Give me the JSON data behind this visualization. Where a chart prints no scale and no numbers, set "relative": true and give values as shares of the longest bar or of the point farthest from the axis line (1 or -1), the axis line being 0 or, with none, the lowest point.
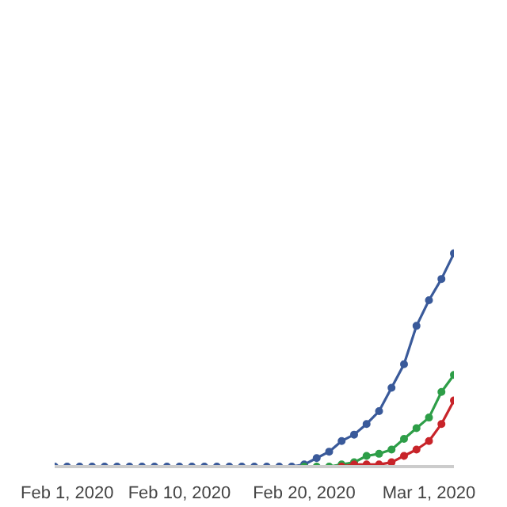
{
  "chart_data": {
    "type": "line",
    "relative": true,
    "marker": "circle",
    "line_style": "solid",
    "xlim": [
      "2020-01-31",
      "2020-03-03"
    ],
    "xticks": [
      {
        "value": "2020-02-01",
        "label": "Feb 1, 2020"
      },
      {
        "value": "2020-02-10",
        "label": "Feb 10, 2020"
      },
      {
        "value": "2020-02-20",
        "label": "Feb 20, 2020"
      },
      {
        "value": "2020-03-01",
        "label": "Mar 1, 2020"
      }
    ],
    "x": [
      "2020-01-31",
      "2020-02-01",
      "2020-02-02",
      "2020-02-03",
      "2020-02-04",
      "2020-02-05",
      "2020-02-06",
      "2020-02-07",
      "2020-02-08",
      "2020-02-09",
      "2020-02-10",
      "2020-02-11",
      "2020-02-12",
      "2020-02-13",
      "2020-02-14",
      "2020-02-15",
      "2020-02-16",
      "2020-02-17",
      "2020-02-18",
      "2020-02-19",
      "2020-02-20",
      "2020-02-21",
      "2020-02-22",
      "2020-02-23",
      "2020-02-24",
      "2020-02-25",
      "2020-02-26",
      "2020-02-27",
      "2020-02-28",
      "2020-02-29",
      "2020-03-01",
      "2020-03-02",
      "2020-03-03"
    ],
    "series": [
      {
        "color": "#3a5a9a",
        "values": [
          0,
          0,
          0,
          0,
          0,
          0,
          0,
          0,
          0,
          0,
          0,
          0,
          0,
          0,
          0,
          0,
          0,
          0,
          0,
          0,
          0.01,
          0.04,
          0.07,
          0.12,
          0.15,
          0.2,
          0.26,
          0.37,
          0.48,
          0.66,
          0.78,
          0.88,
          1
        ]
      },
      {
        "color": "#2e9e48",
        "x": [
          "2020-02-20",
          "2020-02-21",
          "2020-02-22",
          "2020-02-23",
          "2020-02-24",
          "2020-02-25",
          "2020-02-26",
          "2020-02-27",
          "2020-02-28",
          "2020-02-29",
          "2020-03-01",
          "2020-03-02",
          "2020-03-03"
        ],
        "values": [
          0,
          0,
          0,
          0.01,
          0.02,
          0.05,
          0.06,
          0.08,
          0.13,
          0.18,
          0.23,
          0.35,
          0.43
        ]
      },
      {
        "color": "#c8242a",
        "x": [
          "2020-02-23",
          "2020-02-24",
          "2020-02-25",
          "2020-02-26",
          "2020-02-27",
          "2020-02-28",
          "2020-02-29",
          "2020-03-01",
          "2020-03-02",
          "2020-03-03"
        ],
        "values": [
          0,
          0.01,
          0.01,
          0.01,
          0.02,
          0.05,
          0.08,
          0.12,
          0.2,
          0.31
        ]
      }
    ]
  }
}
